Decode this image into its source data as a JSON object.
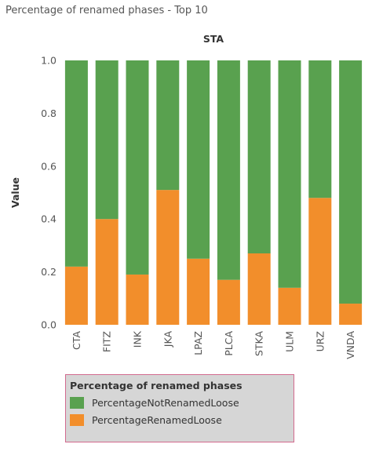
{
  "page": {
    "title": "Percentage of renamed phases - Top 10"
  },
  "chart_data": {
    "type": "bar",
    "stacked": true,
    "header": "STA",
    "ylabel": "Value",
    "xlabel": "",
    "ylim": [
      0,
      1.0
    ],
    "yticks": [
      "0.0",
      "0.2",
      "0.4",
      "0.6",
      "0.8",
      "1.0"
    ],
    "grid": false,
    "categories": [
      "CTA",
      "FITZ",
      "INK",
      "JKA",
      "LPAZ",
      "PLCA",
      "STKA",
      "ULM",
      "URZ",
      "VNDA"
    ],
    "series": [
      {
        "name": "PercentageRenamedLoose",
        "color": "#f28e2b",
        "values": [
          0.22,
          0.4,
          0.19,
          0.51,
          0.25,
          0.17,
          0.27,
          0.14,
          0.48,
          0.08
        ]
      },
      {
        "name": "PercentageNotRenamedLoose",
        "color": "#59a14f",
        "values": [
          0.78,
          0.6,
          0.81,
          0.49,
          0.75,
          0.83,
          0.73,
          0.86,
          0.52,
          0.92
        ]
      }
    ],
    "legend": {
      "title": "Percentage of renamed phases",
      "position": "bottom-left",
      "items": [
        {
          "label": "PercentageNotRenamedLoose",
          "color": "#59a14f"
        },
        {
          "label": "PercentageRenamedLoose",
          "color": "#f28e2b"
        }
      ]
    }
  }
}
